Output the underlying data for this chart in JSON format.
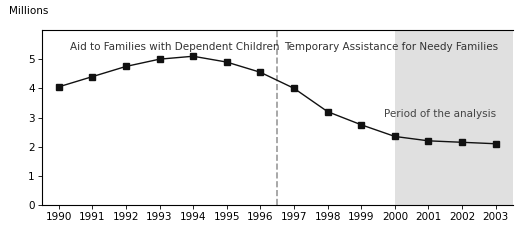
{
  "years": [
    1990,
    1991,
    1992,
    1993,
    1994,
    1995,
    1996,
    1997,
    1998,
    1999,
    2000,
    2001,
    2002,
    2003
  ],
  "values": [
    4.05,
    4.4,
    4.75,
    5.0,
    5.1,
    4.9,
    4.55,
    4.0,
    3.2,
    2.75,
    2.35,
    2.2,
    2.15,
    2.1
  ],
  "ylim": [
    0,
    6
  ],
  "yticks": [
    0,
    1,
    2,
    3,
    4,
    5
  ],
  "xlim": [
    1989.5,
    2003.5
  ],
  "dashed_x": 1996.5,
  "shade_start": 2000,
  "shade_end": 2003.5,
  "ylabel": "Millions",
  "left_label": "Aid to Families with Dependent Children",
  "right_label": "Temporary Assistance for Needy Families",
  "analysis_label": "Period of the analysis",
  "background_color": "#ffffff",
  "shade_color": "#e0e0e0",
  "line_color": "#111111",
  "marker": "s",
  "marker_size": 4,
  "dashed_color": "#999999",
  "tick_label_fontsize": 7.5,
  "ylabel_fontsize": 7.5,
  "annotation_fontsize": 7.5
}
